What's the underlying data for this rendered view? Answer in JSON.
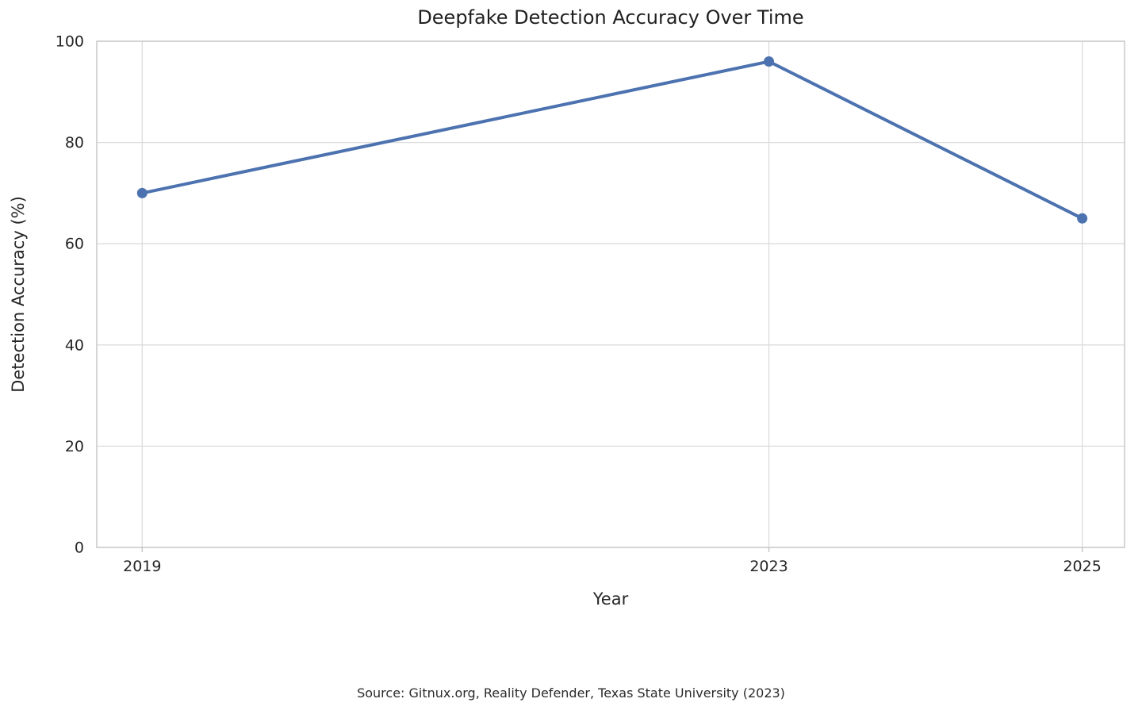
{
  "figure": {
    "background": "#ffffff",
    "source_note": "Source: Gitnux.org, Reality Defender, Texas State University (2023)"
  },
  "chart_data": {
    "type": "line",
    "title": "Deepfake Detection Accuracy Over Time",
    "xlabel": "Year",
    "ylabel": "Detection Accuracy (%)",
    "x": [
      2019,
      2023,
      2025
    ],
    "values": [
      70,
      96,
      65
    ],
    "xticks": [
      "2019",
      "2023",
      "2025"
    ],
    "xtick_values": [
      2019,
      2023,
      2025
    ],
    "yticks": [
      "0",
      "20",
      "40",
      "60",
      "80",
      "100"
    ],
    "ytick_values": [
      0,
      20,
      40,
      60,
      80,
      100
    ],
    "xlim": [
      2018.71,
      2025.27
    ],
    "ylim": [
      0,
      100
    ],
    "grid": true,
    "legend": "none",
    "style": {
      "line_color": "#4C72B0",
      "marker": "circle",
      "grid_color": "#dcdcdc",
      "spine_color": "#c8c8c8",
      "tick_color": "#c8c8c8",
      "text_color": "#262626"
    }
  }
}
